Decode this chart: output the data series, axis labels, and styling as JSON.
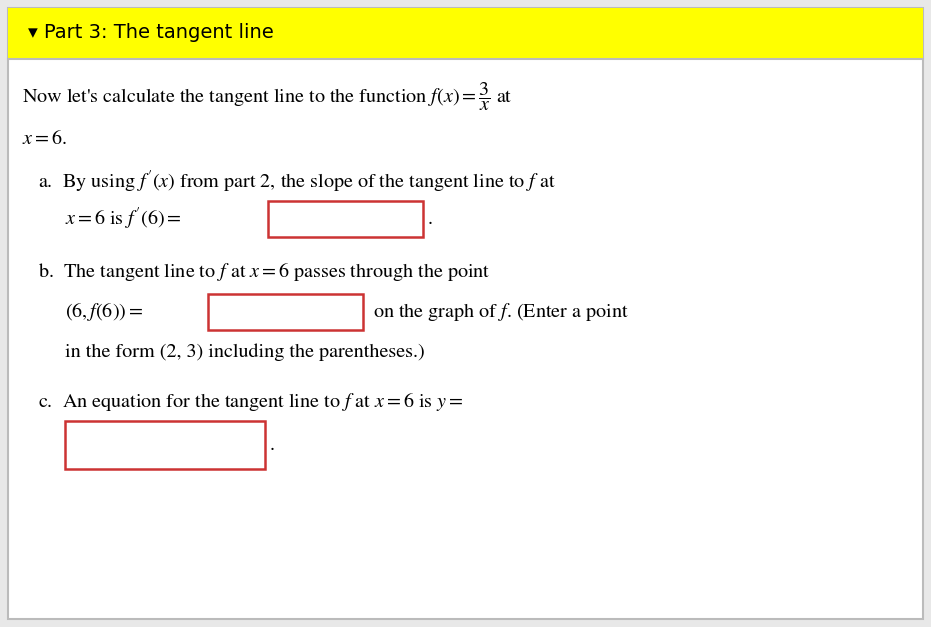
{
  "title": "▾ Part 3: The tangent line",
  "title_bg": "#ffff00",
  "title_color": "#000000",
  "bg_color": "#e8e8e8",
  "content_bg": "#ffffff",
  "border_color": "#bbbbbb",
  "box_border_color": "#cc3333",
  "font_size_title": 14,
  "font_size_body": 14.5
}
